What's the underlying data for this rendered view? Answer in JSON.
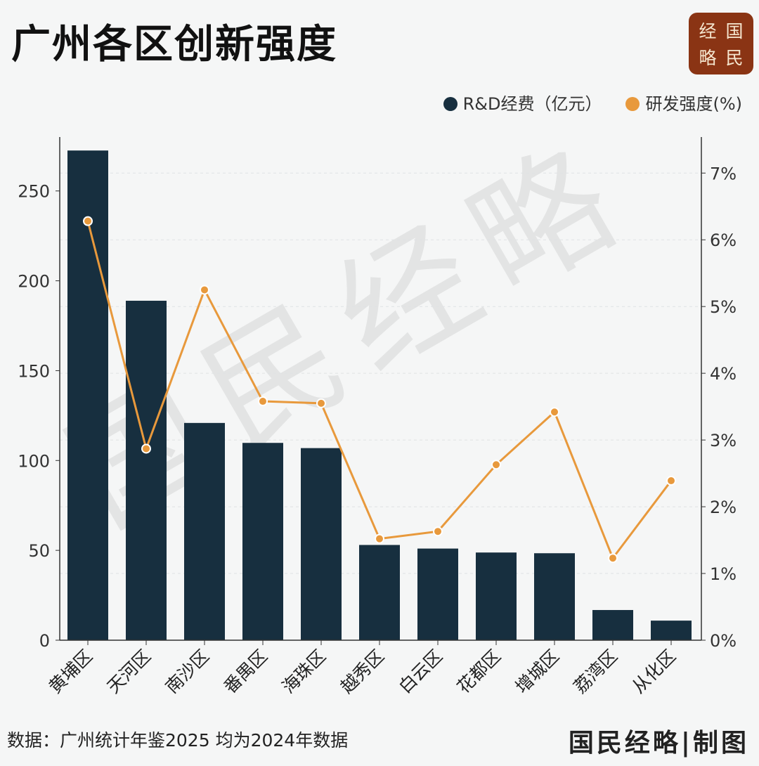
{
  "title": "广州各区创新强度",
  "logo": {
    "chars": [
      "经",
      "国",
      "略",
      "民"
    ],
    "color": "#8a3414"
  },
  "watermark": "国民经略",
  "footer": {
    "source": "数据：广州统计年鉴2025  均为2024年数据",
    "brand": "国民经略|制图"
  },
  "chart_data": {
    "type": "bar+line",
    "title": "广州各区创新强度",
    "categories": [
      "黄埔区",
      "天河区",
      "南沙区",
      "番禺区",
      "海珠区",
      "越秀区",
      "白云区",
      "花都区",
      "增城区",
      "荔湾区",
      "从化区"
    ],
    "series": [
      {
        "name": "R&D经费（亿元）",
        "type": "bar",
        "axis": "left",
        "color": "#172f3f",
        "values": [
          272.5,
          188.9,
          120.9,
          109.8,
          106.9,
          53.0,
          51.0,
          48.8,
          48.4,
          16.8,
          10.9
        ]
      },
      {
        "name": "研发强度(%)",
        "type": "line",
        "axis": "right",
        "color": "#e8993c",
        "values": [
          6.28,
          2.87,
          5.25,
          3.58,
          3.55,
          1.52,
          1.63,
          2.63,
          3.42,
          1.23,
          2.39
        ]
      }
    ],
    "left_axis": {
      "ylim": [
        0,
        280
      ],
      "ticks": [
        0,
        50,
        100,
        150,
        200,
        250
      ]
    },
    "right_axis": {
      "ylim": [
        0,
        7.54
      ],
      "ticks": [
        0,
        1,
        2,
        3,
        4,
        5,
        6,
        7
      ],
      "tick_labels": [
        "0%",
        "1%",
        "2%",
        "3%",
        "4%",
        "5%",
        "6%",
        "7%"
      ]
    },
    "legend_position": "top-right",
    "grid": "horizontal dashed (faint)"
  }
}
